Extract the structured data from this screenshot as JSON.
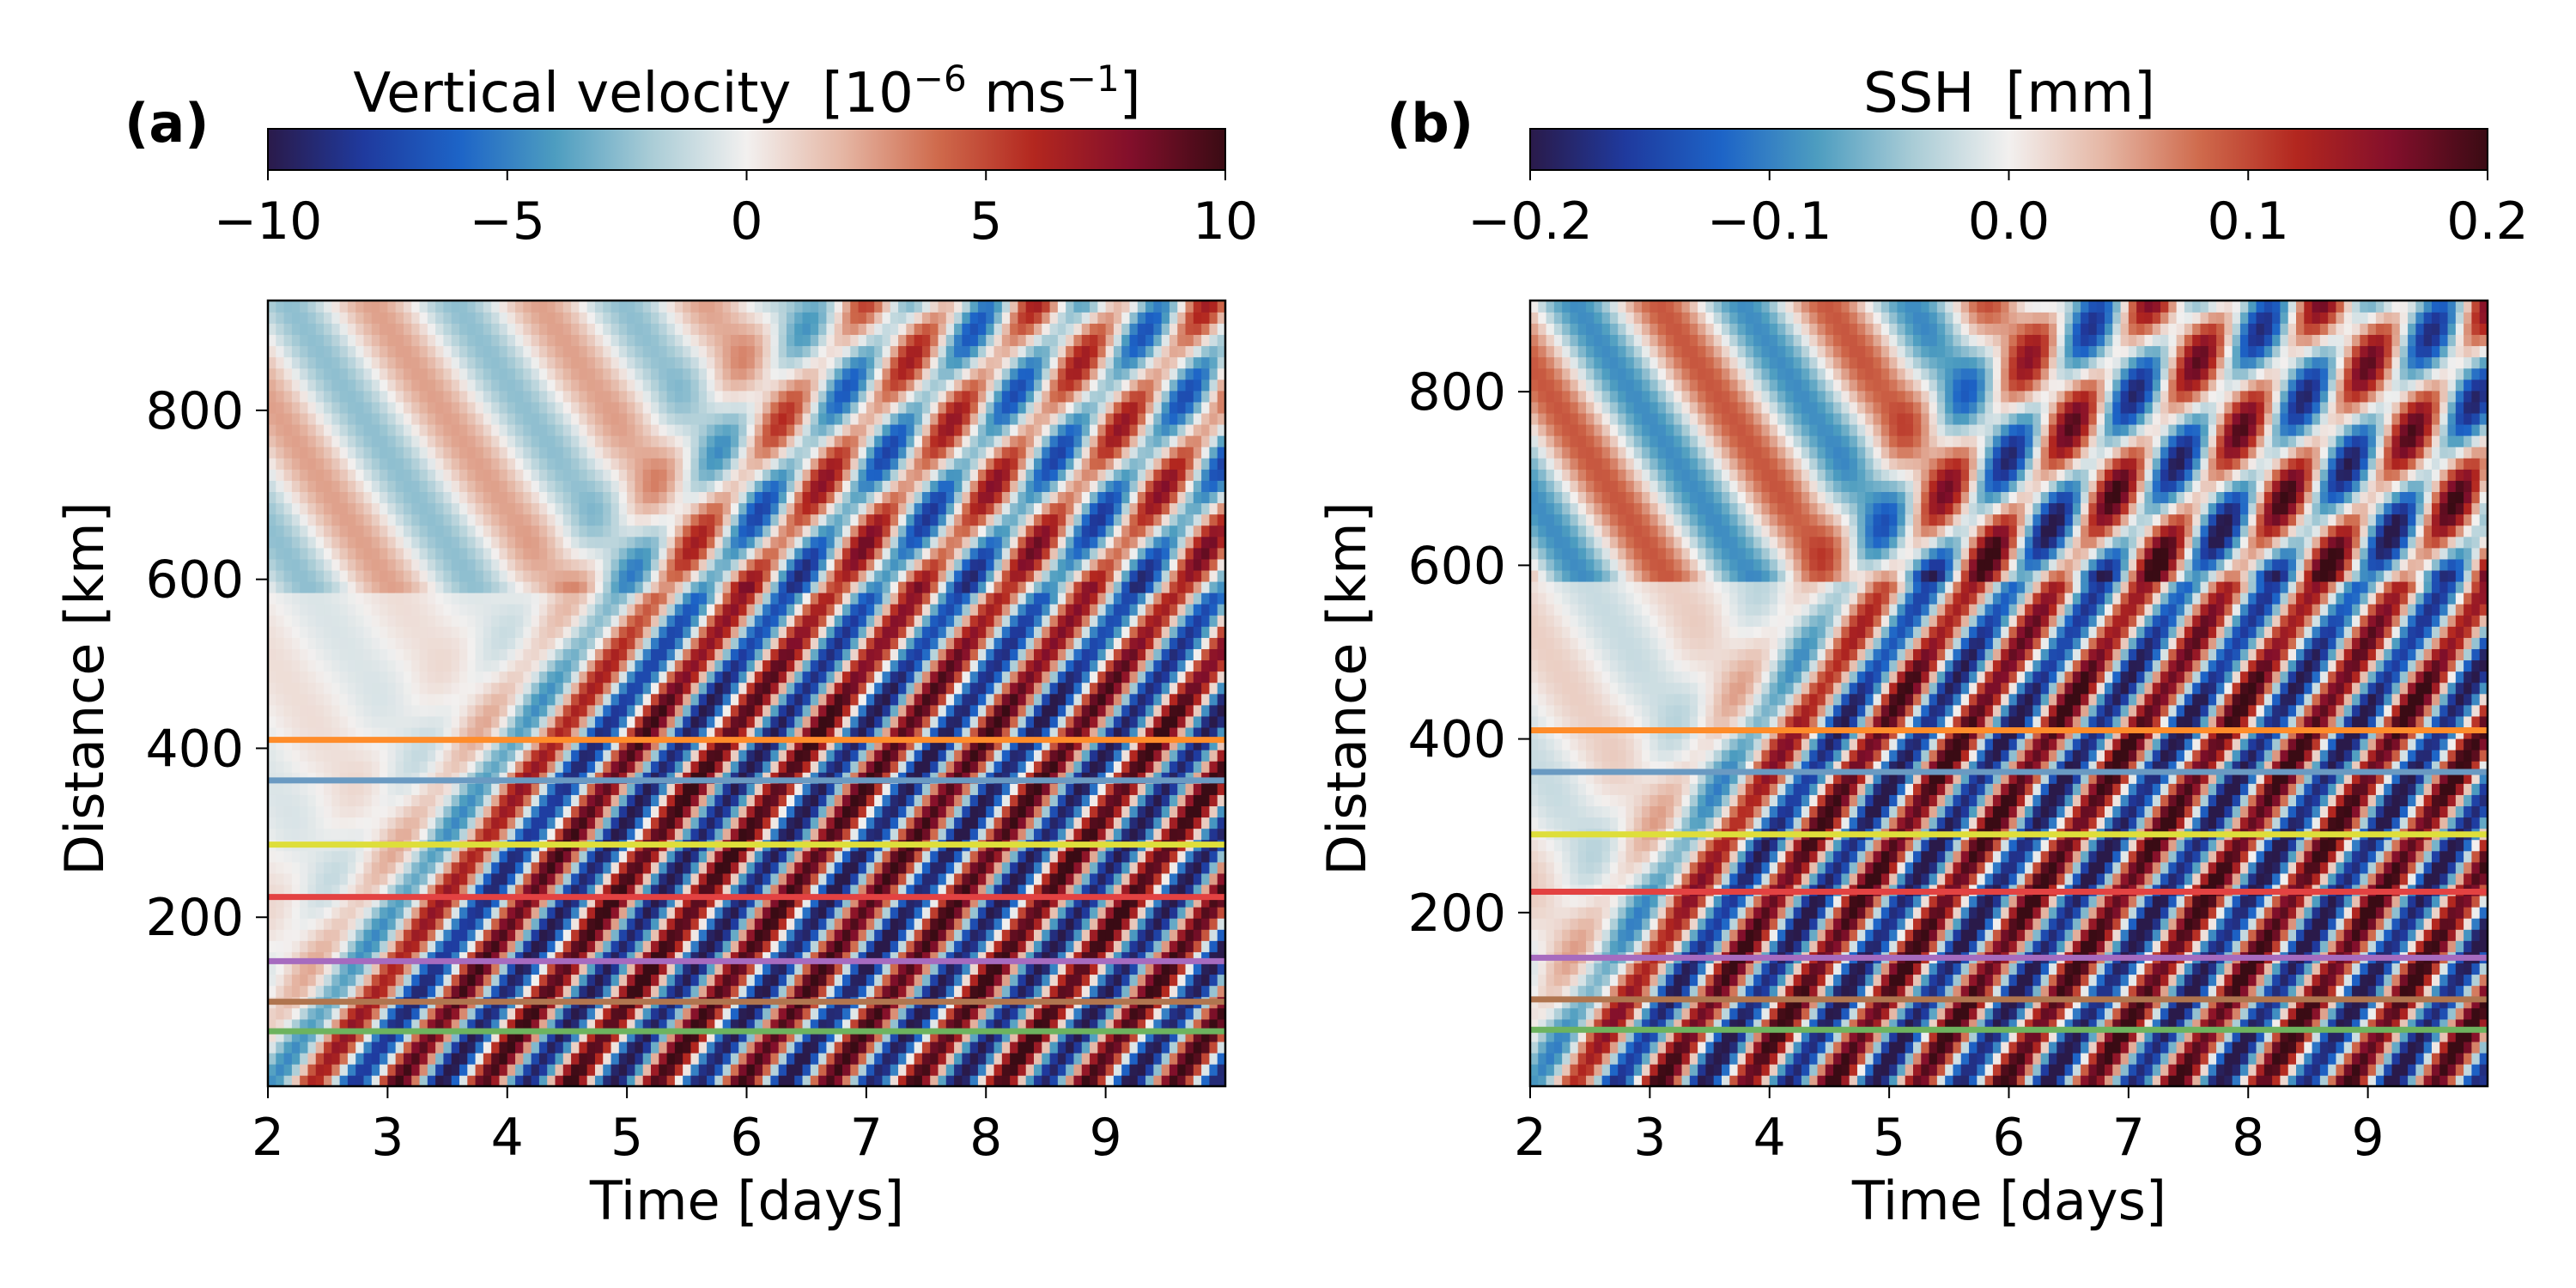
{
  "chart_data": [
    {
      "type": "heatmap",
      "panel_label": "(a)",
      "colorbar": {
        "title": "Vertical velocity",
        "unit_base": "[10",
        "unit_exp": "−6",
        "unit_mid": " ms",
        "unit_exp2": "−1",
        "unit_end": "]",
        "range": [
          -10,
          10
        ],
        "tick_values": [
          -10,
          -5,
          0,
          5,
          10
        ],
        "tick_labels": [
          "−10",
          "−5",
          "0",
          "5",
          "10"
        ]
      },
      "xlabel": "Time [days]",
      "ylabel": "Distance [km]",
      "xlim": [
        2,
        10
      ],
      "ylim": [
        0,
        930
      ],
      "x_tick_values": [
        2,
        3,
        4,
        5,
        6,
        7,
        8,
        9
      ],
      "x_tick_labels": [
        "2",
        "3",
        "4",
        "5",
        "6",
        "7",
        "8",
        "9"
      ],
      "y_tick_values": [
        200,
        400,
        600,
        800
      ],
      "y_tick_labels": [
        "200",
        "400",
        "600",
        "800"
      ],
      "field": {
        "amplitude": 7,
        "upper_amplitude": 3,
        "speed_km_per_day": 200,
        "period_days": 0.72,
        "upper_phase": 0.7
      },
      "horizontal_lines": [
        {
          "y": 410,
          "color": "#ff8c2a"
        },
        {
          "y": 362,
          "color": "#6a9ac2"
        },
        {
          "y": 286,
          "color": "#dede3a"
        },
        {
          "y": 224,
          "color": "#e34242"
        },
        {
          "y": 148,
          "color": "#a66bbf"
        },
        {
          "y": 100,
          "color": "#b0754f"
        },
        {
          "y": 65,
          "color": "#6db35f"
        }
      ]
    },
    {
      "type": "heatmap",
      "panel_label": "(b)",
      "colorbar": {
        "title": "SSH",
        "unit_base": "[mm]",
        "unit_exp": "",
        "unit_mid": "",
        "unit_exp2": "",
        "unit_end": "",
        "range": [
          -0.2,
          0.2
        ],
        "tick_values": [
          -0.2,
          -0.1,
          0.0,
          0.1,
          0.2
        ],
        "tick_labels": [
          "−0.2",
          "−0.1",
          "0.0",
          "0.1",
          "0.2"
        ]
      },
      "xlabel": "Time [days]",
      "ylabel": "Distance [km]",
      "xlim": [
        2,
        10
      ],
      "ylim": [
        0,
        905
      ],
      "x_tick_values": [
        2,
        3,
        4,
        5,
        6,
        7,
        8,
        9
      ],
      "x_tick_labels": [
        "2",
        "3",
        "4",
        "5",
        "6",
        "7",
        "8",
        "9"
      ],
      "y_tick_values": [
        200,
        400,
        600,
        800
      ],
      "y_tick_labels": [
        "200",
        "400",
        "600",
        "800"
      ],
      "field": {
        "amplitude": 0.17,
        "upper_amplitude": 0.13,
        "speed_km_per_day": 220,
        "period_days": 0.72,
        "upper_phase": 0.3
      },
      "horizontal_lines": [
        {
          "y": 410,
          "color": "#ff8c2a"
        },
        {
          "y": 362,
          "color": "#6a9ac2"
        },
        {
          "y": 290,
          "color": "#dede3a"
        },
        {
          "y": 224,
          "color": "#e34242"
        },
        {
          "y": 148,
          "color": "#a66bbf"
        },
        {
          "y": 100,
          "color": "#b0754f"
        },
        {
          "y": 65,
          "color": "#6db35f"
        }
      ]
    }
  ],
  "colormap_stops": [
    "#2a1a4a",
    "#1f3a9e",
    "#1d64c7",
    "#4d9dc0",
    "#a9ccd6",
    "#f2f0ef",
    "#e5b6a4",
    "#cf6a4c",
    "#b3271f",
    "#830f2b",
    "#3a0b14"
  ]
}
